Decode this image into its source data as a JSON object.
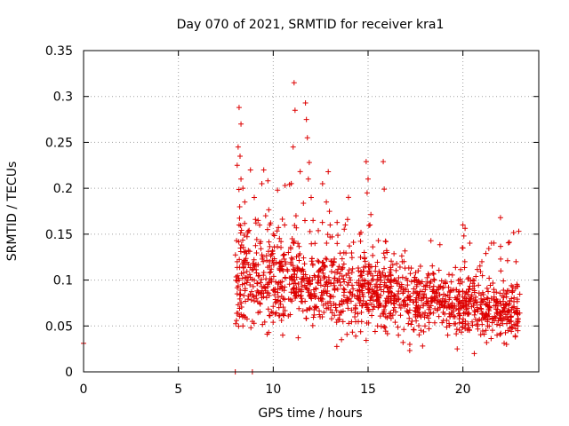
{
  "chart_data": {
    "type": "scatter",
    "title": "Day 070 of 2021, SRMTID for receiver kra1",
    "xlabel": "GPS time / hours",
    "ylabel": "SRMTID / TECUs",
    "xlim": [
      0,
      24
    ],
    "ylim": [
      0,
      0.35
    ],
    "xticks": [
      0,
      5,
      10,
      15,
      20
    ],
    "xtick_labels": [
      "0",
      "5",
      "10",
      "15",
      "20"
    ],
    "yticks": [
      0,
      0.05,
      0.1,
      0.15,
      0.2,
      0.25,
      0.3,
      0.35
    ],
    "ytick_labels": [
      "0",
      "0.05",
      "0.1",
      "0.15",
      "0.2",
      "0.25",
      "0.3",
      "0.35"
    ],
    "grid": true,
    "marker": "+",
    "series_color": "#dd0000",
    "series": [
      {
        "name": "SRMTID",
        "points": [
          [
            0.0,
            0.031
          ],
          [
            8.0,
            0.0
          ],
          [
            8.9,
            0.0
          ],
          [
            8.2,
            0.288
          ],
          [
            8.3,
            0.27
          ],
          [
            8.15,
            0.245
          ],
          [
            8.25,
            0.235
          ],
          [
            8.1,
            0.225
          ],
          [
            8.3,
            0.21
          ],
          [
            8.4,
            0.2
          ],
          [
            8.5,
            0.185
          ],
          [
            8.2,
            0.16
          ],
          [
            8.1,
            0.12
          ],
          [
            8.2,
            0.1
          ],
          [
            8.1,
            0.085
          ],
          [
            8.3,
            0.075
          ],
          [
            8.5,
            0.06
          ],
          [
            8.4,
            0.05
          ],
          [
            8.8,
            0.22
          ],
          [
            9.0,
            0.19
          ],
          [
            9.2,
            0.165
          ],
          [
            9.4,
            0.205
          ],
          [
            9.5,
            0.22
          ],
          [
            9.3,
            0.14
          ],
          [
            9.6,
            0.17
          ],
          [
            9.7,
            0.155
          ],
          [
            9.1,
            0.08
          ],
          [
            8.9,
            0.055
          ],
          [
            9.8,
            0.12
          ],
          [
            9.9,
            0.1
          ],
          [
            10.0,
            0.15
          ],
          [
            10.1,
            0.09
          ],
          [
            10.3,
            0.07
          ],
          [
            10.5,
            0.04
          ],
          [
            10.6,
            0.16
          ],
          [
            10.8,
            0.13
          ],
          [
            11.0,
            0.145
          ],
          [
            11.1,
            0.315
          ],
          [
            11.15,
            0.285
          ],
          [
            11.05,
            0.245
          ],
          [
            11.2,
            0.17
          ],
          [
            11.3,
            0.14
          ],
          [
            11.5,
            0.08
          ],
          [
            11.7,
            0.293
          ],
          [
            11.75,
            0.275
          ],
          [
            11.8,
            0.255
          ],
          [
            11.9,
            0.228
          ],
          [
            11.85,
            0.21
          ],
          [
            12.0,
            0.19
          ],
          [
            12.1,
            0.165
          ],
          [
            12.2,
            0.14
          ],
          [
            12.4,
            0.12
          ],
          [
            12.5,
            0.1
          ],
          [
            12.6,
            0.205
          ],
          [
            12.8,
            0.185
          ],
          [
            12.9,
            0.218
          ],
          [
            13.0,
            0.16
          ],
          [
            13.2,
            0.12
          ],
          [
            13.4,
            0.09
          ],
          [
            13.6,
            0.035
          ],
          [
            13.8,
            0.16
          ],
          [
            14.0,
            0.08
          ],
          [
            14.3,
            0.06
          ],
          [
            14.5,
            0.11
          ],
          [
            14.8,
            0.13
          ],
          [
            14.9,
            0.229
          ],
          [
            15.0,
            0.21
          ],
          [
            14.95,
            0.195
          ],
          [
            15.1,
            0.16
          ],
          [
            15.2,
            0.09
          ],
          [
            15.5,
            0.05
          ],
          [
            15.8,
            0.229
          ],
          [
            15.85,
            0.199
          ],
          [
            16.0,
            0.13
          ],
          [
            16.2,
            0.1
          ],
          [
            16.4,
            0.07
          ],
          [
            16.6,
            0.04
          ],
          [
            16.8,
            0.12
          ],
          [
            17.0,
            0.09
          ],
          [
            17.2,
            0.03
          ],
          [
            17.5,
            0.06
          ],
          [
            17.8,
            0.08
          ],
          [
            18.0,
            0.05
          ],
          [
            18.5,
            0.1
          ],
          [
            18.8,
            0.07
          ],
          [
            19.2,
            0.04
          ],
          [
            19.5,
            0.06
          ],
          [
            19.7,
            0.025
          ],
          [
            20.0,
            0.16
          ],
          [
            20.05,
            0.148
          ],
          [
            20.0,
            0.135
          ],
          [
            20.1,
            0.12
          ],
          [
            20.3,
            0.09
          ],
          [
            20.6,
            0.02
          ],
          [
            21.0,
            0.12
          ],
          [
            21.3,
            0.05
          ],
          [
            21.5,
            0.08
          ],
          [
            21.8,
            0.04
          ],
          [
            22.0,
            0.11
          ],
          [
            22.3,
            0.03
          ],
          [
            22.6,
            0.07
          ],
          [
            22.8,
            0.12
          ],
          [
            22.9,
            0.05
          ]
        ]
      }
    ],
    "dense_cloud": {
      "description_free": true,
      "seed": 70,
      "count": 1400,
      "x_range": [
        8.0,
        23.0
      ],
      "level_start": 0.11,
      "level_end": 0.065,
      "spread_start": 0.04,
      "spread_end": 0.02
    }
  }
}
